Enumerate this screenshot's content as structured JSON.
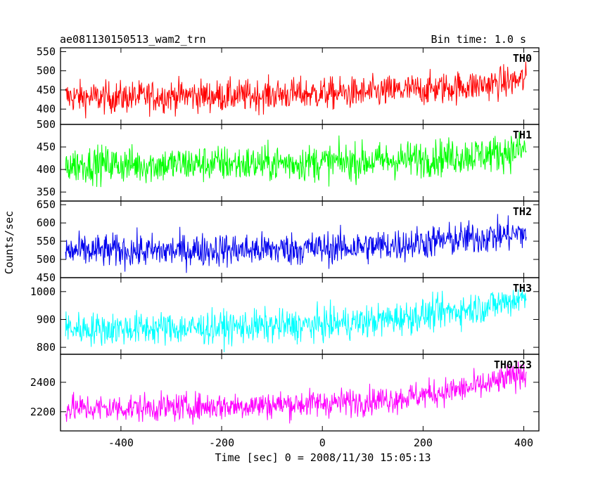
{
  "chart_data": [
    {
      "type": "line",
      "title": "ae081130150513_wam2_trn",
      "subtitle": "Bin time: 1.0 s",
      "panel_label": "TH0",
      "color": "#ff0000",
      "ylim": [
        360,
        560
      ],
      "yticks": [
        400,
        450,
        500,
        550
      ],
      "x": [
        -510,
        -450,
        -390,
        -330,
        -270,
        -210,
        -150,
        -90,
        -30,
        30,
        90,
        150,
        210,
        270,
        330,
        390,
        405
      ],
      "values": [
        432,
        430,
        431,
        433,
        436,
        434,
        435,
        438,
        440,
        441,
        442,
        448,
        452,
        458,
        464,
        475,
        478
      ]
    },
    {
      "type": "line",
      "panel_label": "TH1",
      "color": "#00ff00",
      "ylim": [
        330,
        500
      ],
      "yticks": [
        350,
        400,
        450,
        500
      ],
      "x": [
        -510,
        -450,
        -390,
        -330,
        -270,
        -210,
        -150,
        -90,
        -30,
        30,
        90,
        150,
        210,
        270,
        330,
        390,
        405
      ],
      "values": [
        410,
        412,
        411,
        410,
        412,
        413,
        412,
        414,
        415,
        416,
        418,
        421,
        425,
        430,
        434,
        442,
        445
      ]
    },
    {
      "type": "line",
      "panel_label": "TH2",
      "color": "#0000ee",
      "ylim": [
        450,
        660
      ],
      "yticks": [
        450,
        500,
        550,
        600,
        650
      ],
      "x": [
        -510,
        -450,
        -390,
        -330,
        -270,
        -210,
        -150,
        -90,
        -30,
        30,
        90,
        150,
        210,
        270,
        330,
        390,
        405
      ],
      "values": [
        522,
        523,
        524,
        522,
        525,
        527,
        526,
        528,
        530,
        532,
        535,
        540,
        548,
        555,
        562,
        570,
        572
      ]
    },
    {
      "type": "line",
      "panel_label": "TH3",
      "color": "#00ffff",
      "ylim": [
        775,
        1050
      ],
      "yticks": [
        800,
        900,
        1000
      ],
      "x": [
        -510,
        -450,
        -390,
        -330,
        -270,
        -210,
        -150,
        -90,
        -30,
        30,
        90,
        150,
        210,
        270,
        330,
        390,
        405
      ],
      "values": [
        868,
        866,
        867,
        869,
        868,
        871,
        874,
        876,
        878,
        885,
        892,
        905,
        918,
        932,
        948,
        975,
        980
      ]
    },
    {
      "type": "line",
      "panel_label": "TH0123",
      "color": "#ff00ff",
      "ylim": [
        2070,
        2590
      ],
      "yticks": [
        2200,
        2400
      ],
      "x": [
        -510,
        -450,
        -390,
        -330,
        -270,
        -210,
        -150,
        -90,
        -30,
        30,
        90,
        150,
        210,
        270,
        330,
        390,
        405
      ],
      "values": [
        2225,
        2222,
        2226,
        2228,
        2232,
        2238,
        2242,
        2248,
        2255,
        2262,
        2275,
        2290,
        2320,
        2350,
        2385,
        2450,
        2470
      ]
    }
  ],
  "xaxis": {
    "xlim": [
      -520,
      430
    ],
    "xticks": [
      -400,
      -200,
      0,
      200,
      400
    ],
    "xlabel": "Time [sec] 0 = 2008/11/30 15:05:13"
  },
  "ylabel": "Counts/sec"
}
